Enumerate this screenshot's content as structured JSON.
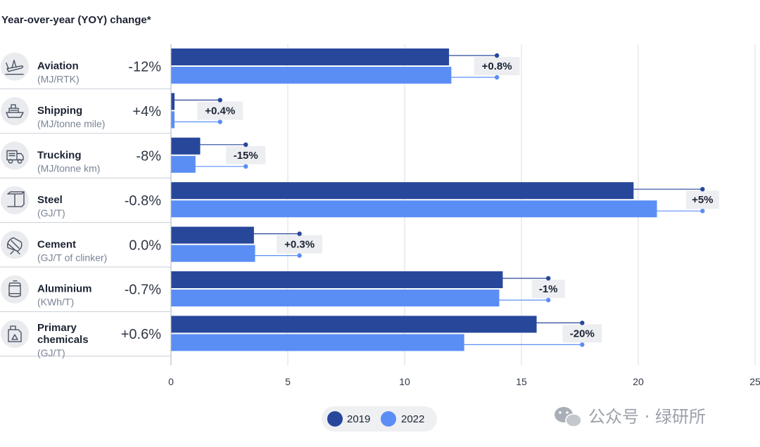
{
  "chart_data": {
    "type": "bar",
    "orientation": "horizontal",
    "title": "Year-over-year (YOY) change*",
    "xlim": [
      0,
      25
    ],
    "xticks": [
      0,
      5,
      10,
      15,
      20,
      25
    ],
    "categories": [
      {
        "name": "Aviation",
        "unit": "(MJ/RTK)",
        "yoy": "-12%",
        "icon": "airplane-icon"
      },
      {
        "name": "Shipping",
        "unit": "(MJ/tonne mile)",
        "yoy": "+4%",
        "icon": "ship-icon"
      },
      {
        "name": "Trucking",
        "unit": "(MJ/tonne km)",
        "yoy": "-8%",
        "icon": "truck-icon"
      },
      {
        "name": "Steel",
        "unit": "(GJ/T)",
        "yoy": "-0.8%",
        "icon": "steel-beam-icon"
      },
      {
        "name": "Cement",
        "unit": "(GJ/T of clinker)",
        "yoy": "0.0%",
        "icon": "cement-mixer-icon"
      },
      {
        "name": "Aluminium",
        "unit": "(KWh/T)",
        "yoy": "-0.7%",
        "icon": "aluminium-can-icon"
      },
      {
        "name": "Primary chemicals",
        "name_lines": [
          "Primary",
          "chemicals"
        ],
        "unit": "(GJ/T)",
        "yoy": "+0.6%",
        "icon": "chemical-canister-icon"
      }
    ],
    "series": [
      {
        "name": "2019",
        "color": "#27479a",
        "values": [
          11.9,
          0.15,
          1.25,
          19.8,
          3.55,
          14.2,
          15.65
        ]
      },
      {
        "name": "2022",
        "color": "#5b8ef5",
        "values": [
          12.0,
          0.15,
          1.05,
          20.8,
          3.6,
          14.05,
          12.55
        ]
      }
    ],
    "annotations": [
      {
        "marker": 13.95,
        "label": "+0.8%"
      },
      {
        "marker": 2.1,
        "label": "+0.4%"
      },
      {
        "marker": 3.2,
        "label": "-15%"
      },
      {
        "marker": 22.75,
        "label": "+5%"
      },
      {
        "marker": 5.5,
        "label": "+0.3%"
      },
      {
        "marker": 16.15,
        "label": "-1%"
      },
      {
        "marker": 17.6,
        "label": "-20%"
      }
    ],
    "legend": [
      "2019",
      "2022"
    ],
    "legend_position": "bottom-center",
    "grid": true
  },
  "watermark": {
    "text": "公众号 · 绿研所",
    "icon": "wechat-icon"
  },
  "colors": {
    "dark": "#27479a",
    "light": "#5b8ef5",
    "grid": "#d9dde3",
    "label_bg": "#eceef1",
    "legend_bg": "#eef0f2"
  }
}
